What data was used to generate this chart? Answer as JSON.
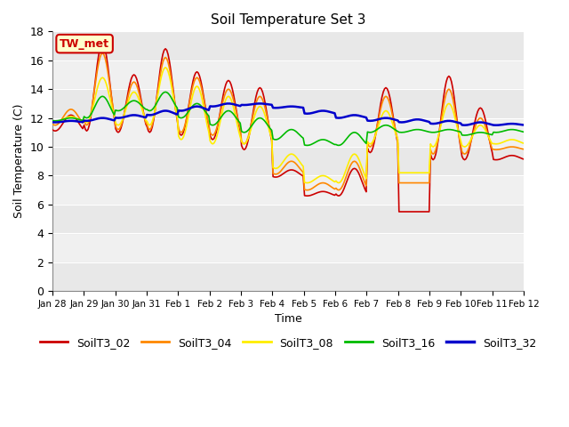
{
  "title": "Soil Temperature Set 3",
  "xlabel": "Time",
  "ylabel": "Soil Temperature (C)",
  "ylim": [
    0,
    18
  ],
  "yticks": [
    0,
    2,
    4,
    6,
    8,
    10,
    12,
    14,
    16,
    18
  ],
  "annotation_text": "TW_met",
  "annotation_color": "#cc0000",
  "annotation_bg": "#ffffcc",
  "fig_bg": "#ffffff",
  "plot_bg": "#f0f0f0",
  "series": {
    "SoilT3_02": {
      "color": "#cc0000",
      "linewidth": 1.2
    },
    "SoilT3_04": {
      "color": "#ff8800",
      "linewidth": 1.2
    },
    "SoilT3_08": {
      "color": "#ffee00",
      "linewidth": 1.2
    },
    "SoilT3_16": {
      "color": "#00bb00",
      "linewidth": 1.2
    },
    "SoilT3_32": {
      "color": "#0000cc",
      "linewidth": 1.8
    }
  },
  "xtick_labels": [
    "Jan 28",
    "Jan 29",
    "Jan 30",
    "Jan 31",
    "Feb 1",
    "Feb 2",
    "Feb 3",
    "Feb 4",
    "Feb 5",
    "Feb 6",
    "Feb 7",
    "Feb 8",
    "Feb 9",
    "Feb 10",
    "Feb 11",
    "Feb 12"
  ],
  "stripe_color": "#e8e8e8",
  "grid_color": "#ffffff"
}
